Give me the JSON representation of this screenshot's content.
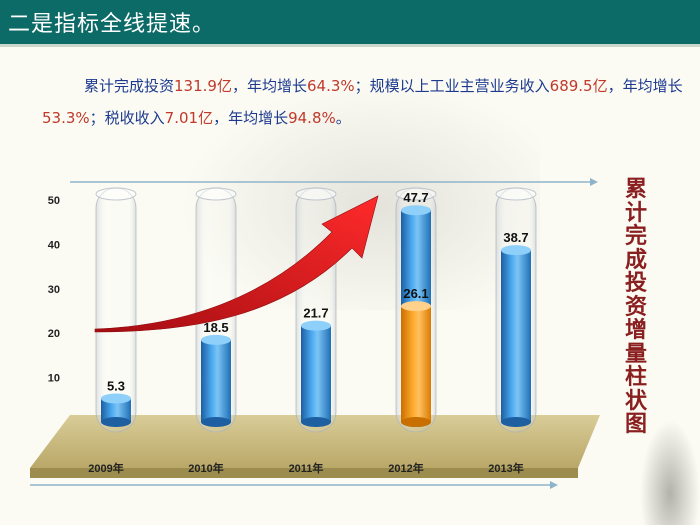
{
  "header": {
    "title": "二是指标全线提速。"
  },
  "intro": {
    "p1": "累计完成投资",
    "v1": "131.9亿",
    "p2": "，年均增长",
    "v2": "64.3%",
    "p3": "；规模以上工业主营业务收入",
    "v3": "689.5亿",
    "p4": "，年均增长",
    "v4": "53.3%",
    "p5": "；税收收入",
    "v5": "7.01亿",
    "p6": "，年均增长",
    "v6": "94.8%",
    "p7": "。"
  },
  "side_title": [
    "累",
    "计",
    "完",
    "成",
    "投",
    "资",
    "增",
    "量",
    "柱",
    "状",
    "图"
  ],
  "colors": {
    "header_bg": "#0d6b67",
    "bar_blue": "#2e8bd6",
    "bar_orange": "#ff9900",
    "arrow_red": "#d8111b",
    "side_title": "#8a1f1f"
  },
  "chart_data": {
    "type": "bar",
    "categories": [
      "2009年",
      "2010年",
      "2011年",
      "2012年",
      "2013年"
    ],
    "series": [
      {
        "values": [
          5.3,
          18.5,
          21.7,
          47.7,
          38.7
        ],
        "color": "#2e8bd6"
      },
      {
        "values": [
          null,
          null,
          null,
          26.1,
          null
        ],
        "color": "#ff9900"
      }
    ],
    "data_labels": [
      "5.3",
      "18.5",
      "21.7",
      "47.7",
      "38.7"
    ],
    "overlay_label": "26.1",
    "yticks": [
      10,
      20,
      30,
      40,
      50
    ],
    "ylim": [
      0,
      50
    ],
    "title": "",
    "xlabel": "",
    "ylabel": "",
    "grid": false,
    "legend": "none",
    "decoration": "red upward arrow trend"
  }
}
